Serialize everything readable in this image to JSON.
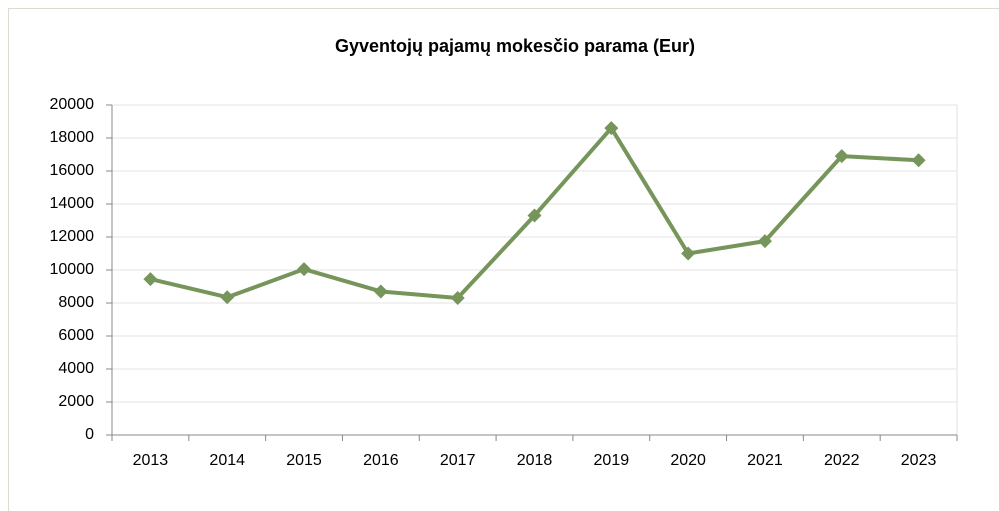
{
  "chart_data": {
    "type": "line",
    "title": "Gyventojų pajamų mokesčio parama (Eur)",
    "categories": [
      "2013",
      "2014",
      "2015",
      "2016",
      "2017",
      "2018",
      "2019",
      "2020",
      "2021",
      "2022",
      "2023"
    ],
    "series": [
      {
        "name": "Gyventojų pajamų mokesčio parama (Eur)",
        "color": "#76955a",
        "values": [
          9450,
          8350,
          10050,
          8700,
          8300,
          13300,
          18600,
          11000,
          11750,
          16900,
          16650
        ]
      }
    ],
    "ylim": [
      0,
      20000
    ],
    "yticks": [
      0,
      2000,
      4000,
      6000,
      8000,
      10000,
      12000,
      14000,
      16000,
      18000,
      20000
    ],
    "grid": true
  }
}
